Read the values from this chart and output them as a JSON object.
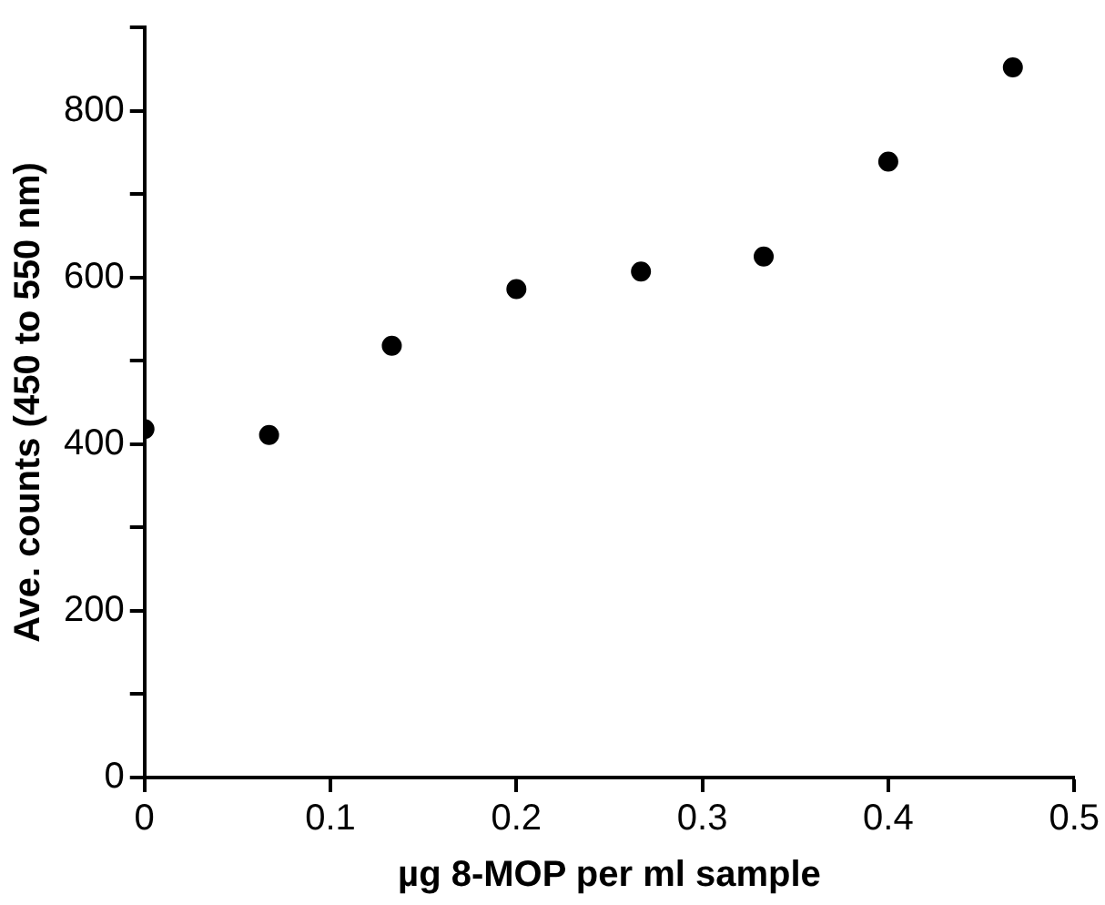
{
  "chart_data": {
    "type": "scatter",
    "xlabel": "µg 8-MOP per ml sample",
    "ylabel": "Ave. counts (450 to 550 nm)",
    "x": [
      0,
      0.067,
      0.133,
      0.2,
      0.267,
      0.333,
      0.4,
      0.467
    ],
    "series": [
      {
        "color": "#000000",
        "values": [
          418,
          411,
          518,
          586,
          607,
          625,
          739,
          852
        ]
      }
    ],
    "xlim": [
      0,
      0.5
    ],
    "xticks": [
      0,
      0.1,
      0.2,
      0.3,
      0.4,
      0.5
    ],
    "ylim": [
      0,
      900
    ],
    "yticks": [
      0,
      {
        "value": 100,
        "label": null
      },
      200,
      {
        "value": 300,
        "label": null
      },
      400,
      {
        "value": 500,
        "label": null
      },
      600,
      {
        "value": 700,
        "label": null
      },
      800,
      {
        "value": 900,
        "label": null
      }
    ],
    "marker": "circle",
    "grid": false,
    "legend": false
  }
}
